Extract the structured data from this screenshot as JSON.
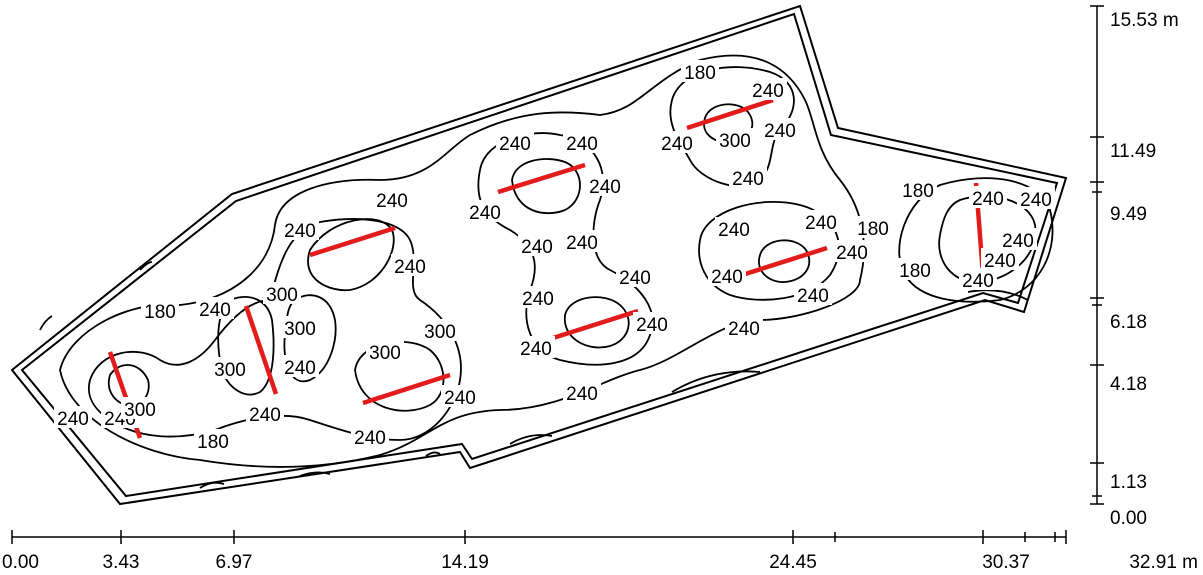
{
  "x_axis": {
    "ticks": [
      "0.00",
      "3.43",
      "6.97",
      "14.19",
      "24.45",
      "30.37"
    ],
    "end_label": "32.91 m"
  },
  "y_axis": {
    "ticks": [
      "15.53 m",
      "11.49",
      "9.49",
      "6.18",
      "4.18",
      "1.13",
      "0.00"
    ]
  },
  "isolux_labels": [
    "180",
    "240",
    "300",
    "240",
    "240",
    "300",
    "300",
    "300",
    "240",
    "180",
    "240",
    "240",
    "240",
    "240",
    "300",
    "300",
    "240",
    "240",
    "240",
    "240",
    "240",
    "240",
    "240",
    "240",
    "240",
    "240",
    "240",
    "240",
    "240",
    "240",
    "180",
    "240",
    "240",
    "240",
    "300",
    "240",
    "240",
    "240",
    "240",
    "240",
    "240",
    "240",
    "240",
    "180",
    "180",
    "180",
    "240",
    "240",
    "240"
  ]
}
